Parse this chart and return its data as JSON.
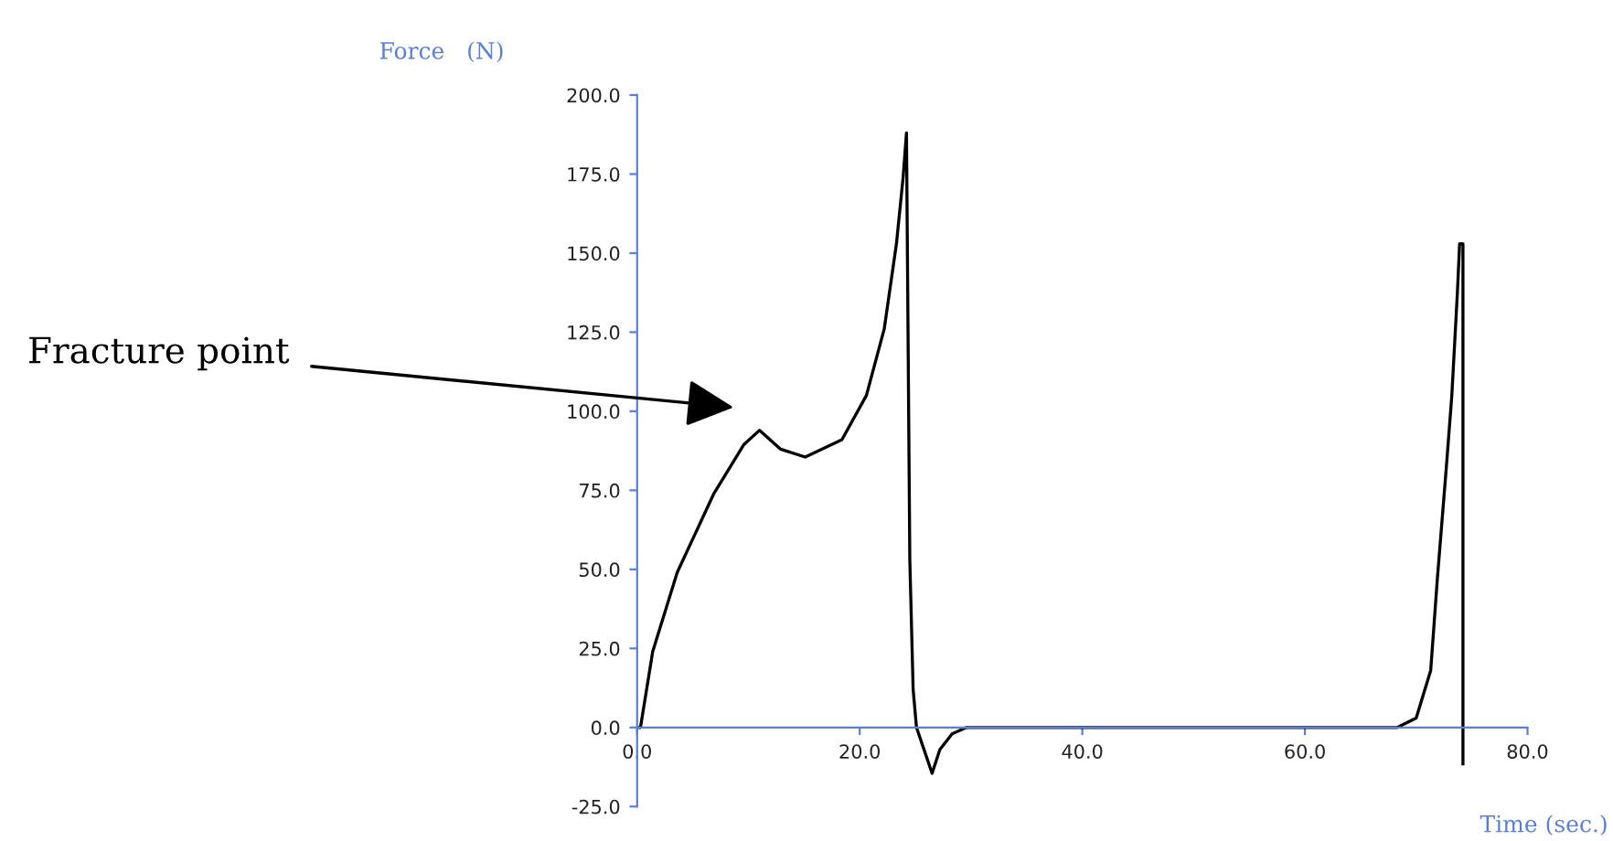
{
  "chart_data": {
    "type": "line",
    "xlabel": "Time (sec.)",
    "ylabel": "Force   (N)",
    "series": [
      {
        "color": "#000000",
        "x": [
          0,
          0.3,
          1.4,
          3.6,
          6.9,
          9.6,
          11,
          12.9,
          15.1,
          18.4,
          20.6,
          22.2,
          23.3,
          23.9,
          24.2,
          24.5,
          24.8,
          25.1,
          26.5,
          27.2,
          28.3,
          29.6,
          40,
          60,
          68.3,
          70.0,
          71.3,
          71.9,
          72.7,
          73.2,
          73.7,
          73.9,
          74.2,
          74.2
        ],
        "values": [
          0,
          0,
          24,
          49,
          74,
          89.5,
          94,
          88,
          85.5,
          91,
          105,
          126,
          153,
          174,
          188,
          53,
          12,
          0,
          -14.5,
          -7,
          -2,
          0,
          0,
          0,
          0,
          3,
          18,
          47,
          82,
          105,
          137.5,
          153,
          153,
          -11.5
        ]
      }
    ],
    "xlim": [
      0,
      80
    ],
    "ylim": [
      -25,
      200
    ],
    "xticks": [
      {
        "value": 0,
        "label": "0.0"
      },
      {
        "value": 20,
        "label": "20.0"
      },
      {
        "value": 40,
        "label": "40.0"
      },
      {
        "value": 60,
        "label": "60.0"
      },
      {
        "value": 80,
        "label": "80.0"
      }
    ],
    "yticks": [
      {
        "value": -25,
        "label": "-25.0"
      },
      {
        "value": 0,
        "label": "0.0"
      },
      {
        "value": 25,
        "label": "25.0"
      },
      {
        "value": 50,
        "label": "50.0"
      },
      {
        "value": 75,
        "label": "75.0"
      },
      {
        "value": 100,
        "label": "100.0"
      },
      {
        "value": 125,
        "label": "125.0"
      },
      {
        "value": 150,
        "label": "150.0"
      },
      {
        "value": 175,
        "label": "175.0"
      },
      {
        "value": 200,
        "label": "200.0"
      }
    ],
    "annotations": [
      "Fracture point"
    ],
    "grid": false,
    "legend": false,
    "marker": "none",
    "line_style": "solid"
  }
}
